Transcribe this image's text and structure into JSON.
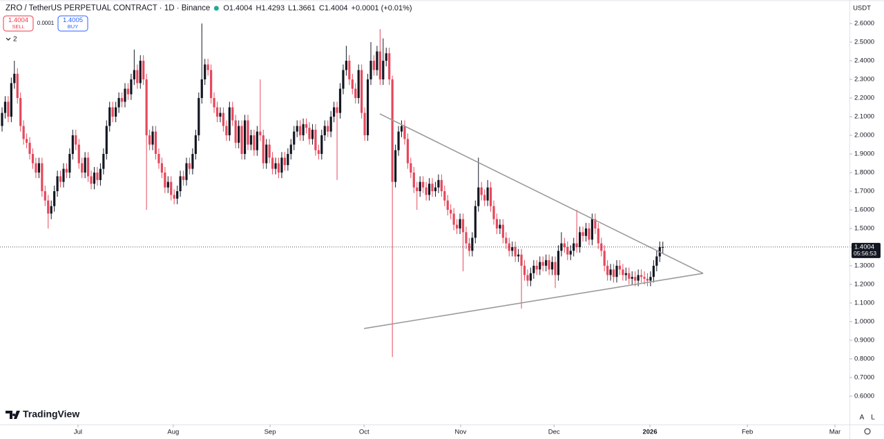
{
  "header": {
    "title": "ZRO / TetherUS PERPETUAL CONTRACT · 1D · Binance",
    "items": [
      {
        "label": "O",
        "value": "1.4004"
      },
      {
        "label": "H",
        "value": "1.4293"
      },
      {
        "label": "L",
        "value": "1.3661"
      },
      {
        "label": "C",
        "value": "1.4004"
      }
    ],
    "change": "+0.0001 (+0.01%)"
  },
  "trade": {
    "sell_price": "1.4004",
    "sell": "SELL",
    "spread": "0.0001",
    "buy_price": "1.4005",
    "buy": "BUY"
  },
  "indicators": "2",
  "currency": "USDT",
  "logo": "TradingView",
  "last_price": {
    "value": 1.4004,
    "label": "1.4004",
    "countdown": "05:56:53"
  },
  "scale_buttons": [
    "A",
    "L"
  ],
  "chart_data": {
    "type": "candlestick",
    "up_color": "#131722",
    "down_color": "#e5485c",
    "trend_color": "#9a9a9a",
    "ylim": [
      0.448,
      2.726
    ],
    "xlim": [
      -0.674,
      275.73
    ],
    "yticks": [
      {
        "value": 0.6,
        "label": "0.6000"
      },
      {
        "value": 0.7,
        "label": "0.7000"
      },
      {
        "value": 0.8,
        "label": "0.8000"
      },
      {
        "value": 0.9,
        "label": "0.9000"
      },
      {
        "value": 1.0,
        "label": "1.0000"
      },
      {
        "value": 1.1,
        "label": "1.1000"
      },
      {
        "value": 1.2,
        "label": "1.2000"
      },
      {
        "value": 1.3,
        "label": "1.3000"
      },
      {
        "value": 1.4,
        "label": "1.4000"
      },
      {
        "value": 1.5,
        "label": "1.5000"
      },
      {
        "value": 1.6,
        "label": "1.6000"
      },
      {
        "value": 1.7,
        "label": "1.7000"
      },
      {
        "value": 1.8,
        "label": "1.8000"
      },
      {
        "value": 1.9,
        "label": "1.9000"
      },
      {
        "value": 2.0,
        "label": "2.0000"
      },
      {
        "value": 2.1,
        "label": "2.1000"
      },
      {
        "value": 2.2,
        "label": "2.2000"
      },
      {
        "value": 2.3,
        "label": "2.3000"
      },
      {
        "value": 2.4,
        "label": "2.4000"
      },
      {
        "value": 2.5,
        "label": "2.5000"
      },
      {
        "value": 2.6,
        "label": "2.6000"
      }
    ],
    "xticks": [
      {
        "value": 24.7,
        "label": "Jul"
      },
      {
        "value": 55.7,
        "label": "Aug"
      },
      {
        "value": 87.2,
        "label": "Sep"
      },
      {
        "value": 117.8,
        "label": "Oct"
      },
      {
        "value": 149.2,
        "label": "Nov"
      },
      {
        "value": 179.6,
        "label": "Dec"
      },
      {
        "value": 210.8,
        "label": "2026",
        "bold": true
      },
      {
        "value": 242.5,
        "label": "Feb"
      },
      {
        "value": 271,
        "label": "Mar"
      }
    ],
    "trendlines": [
      [
        [
          122.9,
          2.115
        ],
        [
          228.1,
          1.259
        ]
      ],
      [
        [
          117.8,
          0.963
        ],
        [
          228.1,
          1.259
        ]
      ]
    ],
    "candles": [
      [
        2.05,
        2.15,
        2.02,
        2.12
      ],
      [
        2.12,
        2.21,
        2.09,
        2.18
      ],
      [
        2.18,
        2.21,
        2.07,
        2.1
      ],
      [
        2.1,
        2.31,
        2.07,
        2.28
      ],
      [
        2.28,
        2.4,
        2.25,
        2.33
      ],
      [
        2.33,
        2.36,
        2.17,
        2.2
      ],
      [
        2.2,
        2.23,
        2.02,
        2.05
      ],
      [
        2.05,
        2.08,
        1.95,
        1.98
      ],
      [
        1.98,
        2.01,
        1.93,
        1.96
      ],
      [
        1.96,
        1.99,
        1.87,
        1.9
      ],
      [
        1.9,
        1.93,
        1.82,
        1.85
      ],
      [
        1.85,
        1.88,
        1.77,
        1.8
      ],
      [
        1.8,
        1.88,
        1.77,
        1.85
      ],
      [
        1.85,
        1.88,
        1.67,
        1.7
      ],
      [
        1.7,
        1.73,
        1.62,
        1.65
      ],
      [
        1.65,
        1.68,
        1.5,
        1.58
      ],
      [
        1.58,
        1.65,
        1.55,
        1.62
      ],
      [
        1.62,
        1.73,
        1.59,
        1.7
      ],
      [
        1.7,
        1.81,
        1.67,
        1.78
      ],
      [
        1.78,
        1.81,
        1.72,
        1.75
      ],
      [
        1.75,
        1.85,
        1.72,
        1.82
      ],
      [
        1.82,
        1.85,
        1.77,
        1.8
      ],
      [
        1.8,
        1.93,
        1.77,
        1.9
      ],
      [
        1.9,
        2.03,
        1.87,
        2.0
      ],
      [
        2.0,
        2.03,
        1.92,
        1.95
      ],
      [
        1.95,
        1.98,
        1.82,
        1.85
      ],
      [
        1.85,
        1.88,
        1.77,
        1.8
      ],
      [
        1.8,
        1.91,
        1.77,
        1.88
      ],
      [
        1.88,
        1.91,
        1.75,
        1.78
      ],
      [
        1.78,
        1.81,
        1.71,
        1.74
      ],
      [
        1.74,
        1.83,
        1.71,
        1.8
      ],
      [
        1.8,
        1.83,
        1.73,
        1.76
      ],
      [
        1.76,
        1.85,
        1.73,
        1.82
      ],
      [
        1.82,
        1.93,
        1.79,
        1.9
      ],
      [
        1.9,
        2.08,
        1.87,
        2.05
      ],
      [
        2.05,
        2.18,
        2.02,
        2.15
      ],
      [
        2.15,
        2.18,
        2.07,
        2.1
      ],
      [
        2.1,
        2.18,
        2.07,
        2.15
      ],
      [
        2.15,
        2.23,
        2.12,
        2.2
      ],
      [
        2.2,
        2.23,
        2.15,
        2.18
      ],
      [
        2.18,
        2.28,
        2.15,
        2.25
      ],
      [
        2.25,
        2.28,
        2.19,
        2.22
      ],
      [
        2.22,
        2.33,
        2.19,
        2.3
      ],
      [
        2.3,
        2.46,
        2.27,
        2.35
      ],
      [
        2.35,
        2.38,
        2.25,
        2.28
      ],
      [
        2.28,
        2.43,
        2.25,
        2.4
      ],
      [
        2.4,
        2.43,
        2.27,
        2.3
      ],
      [
        2.3,
        2.33,
        1.6,
        2.0
      ],
      [
        2.0,
        2.03,
        1.92,
        1.95
      ],
      [
        1.95,
        2.05,
        1.92,
        2.02
      ],
      [
        2.02,
        2.05,
        1.87,
        1.9
      ],
      [
        1.9,
        1.93,
        1.82,
        1.85
      ],
      [
        1.85,
        1.88,
        1.77,
        1.8
      ],
      [
        1.8,
        1.83,
        1.69,
        1.72
      ],
      [
        1.72,
        1.78,
        1.69,
        1.75
      ],
      [
        1.75,
        1.78,
        1.65,
        1.68
      ],
      [
        1.68,
        1.71,
        1.63,
        1.66
      ],
      [
        1.66,
        1.73,
        1.63,
        1.7
      ],
      [
        1.7,
        1.81,
        1.67,
        1.78
      ],
      [
        1.78,
        1.81,
        1.73,
        1.76
      ],
      [
        1.76,
        1.88,
        1.73,
        1.85
      ],
      [
        1.85,
        1.88,
        1.79,
        1.82
      ],
      [
        1.82,
        1.93,
        1.79,
        1.9
      ],
      [
        1.9,
        2.03,
        1.87,
        2.0
      ],
      [
        2.0,
        2.23,
        1.97,
        2.2
      ],
      [
        2.2,
        2.6,
        2.17,
        2.3
      ],
      [
        2.3,
        2.41,
        2.27,
        2.38
      ],
      [
        2.38,
        2.41,
        2.32,
        2.35
      ],
      [
        2.35,
        2.38,
        2.17,
        2.2
      ],
      [
        2.2,
        2.23,
        2.12,
        2.15
      ],
      [
        2.15,
        2.18,
        2.07,
        2.1
      ],
      [
        2.1,
        2.15,
        2.07,
        2.12
      ],
      [
        2.12,
        2.15,
        2.02,
        2.05
      ],
      [
        2.05,
        2.08,
        1.97,
        2.0
      ],
      [
        2.0,
        2.18,
        1.97,
        2.15
      ],
      [
        2.15,
        2.18,
        2.05,
        2.08
      ],
      [
        2.08,
        2.11,
        1.93,
        1.96
      ],
      [
        1.96,
        2.08,
        1.93,
        2.05
      ],
      [
        2.05,
        2.08,
        1.87,
        1.9
      ],
      [
        1.9,
        2.11,
        1.87,
        2.08
      ],
      [
        2.08,
        2.11,
        1.92,
        1.95
      ],
      [
        1.95,
        2.03,
        1.92,
        2.0
      ],
      [
        2.0,
        2.03,
        1.89,
        1.92
      ],
      [
        1.92,
        2.05,
        1.89,
        2.02
      ],
      [
        2.02,
        2.3,
        1.97,
        2.0
      ],
      [
        2.0,
        2.03,
        1.82,
        1.85
      ],
      [
        1.85,
        1.98,
        1.82,
        1.95
      ],
      [
        1.95,
        1.98,
        1.85,
        1.88
      ],
      [
        1.88,
        1.91,
        1.79,
        1.82
      ],
      [
        1.82,
        1.88,
        1.79,
        1.85
      ],
      [
        1.85,
        1.88,
        1.77,
        1.8
      ],
      [
        1.8,
        1.91,
        1.77,
        1.88
      ],
      [
        1.88,
        1.91,
        1.81,
        1.84
      ],
      [
        1.84,
        1.93,
        1.81,
        1.9
      ],
      [
        1.9,
        1.98,
        1.87,
        1.95
      ],
      [
        1.95,
        2.05,
        1.92,
        2.02
      ],
      [
        2.02,
        2.08,
        1.99,
        2.05
      ],
      [
        2.05,
        2.08,
        1.97,
        2.0
      ],
      [
        2.0,
        2.09,
        1.97,
        2.06
      ],
      [
        2.06,
        2.09,
        2.01,
        2.04
      ],
      [
        2.04,
        2.07,
        1.95,
        1.98
      ],
      [
        1.98,
        2.06,
        1.95,
        2.03
      ],
      [
        2.03,
        2.06,
        1.89,
        1.92
      ],
      [
        1.92,
        1.95,
        1.87,
        1.9
      ],
      [
        1.9,
        2.03,
        1.87,
        2.0
      ],
      [
        2.0,
        2.08,
        1.97,
        2.05
      ],
      [
        2.05,
        2.08,
        1.99,
        2.02
      ],
      [
        2.02,
        2.13,
        1.99,
        2.1
      ],
      [
        2.1,
        2.18,
        2.07,
        2.15
      ],
      [
        2.15,
        2.18,
        1.76,
        2.12
      ],
      [
        2.12,
        2.28,
        2.09,
        2.25
      ],
      [
        2.25,
        2.38,
        2.22,
        2.35
      ],
      [
        2.35,
        2.48,
        2.32,
        2.4
      ],
      [
        2.4,
        2.43,
        2.27,
        2.3
      ],
      [
        2.3,
        2.33,
        2.22,
        2.25
      ],
      [
        2.25,
        2.28,
        2.17,
        2.2
      ],
      [
        2.2,
        2.38,
        2.17,
        2.35
      ],
      [
        2.35,
        2.38,
        2.09,
        2.12
      ],
      [
        2.12,
        2.15,
        1.97,
        2.0
      ],
      [
        2.0,
        2.33,
        1.97,
        2.3
      ],
      [
        2.3,
        2.5,
        2.27,
        2.4
      ],
      [
        2.4,
        2.43,
        2.32,
        2.35
      ],
      [
        2.35,
        2.48,
        2.32,
        2.45
      ],
      [
        2.45,
        2.57,
        2.27,
        2.3
      ],
      [
        2.3,
        2.52,
        2.27,
        2.4
      ],
      [
        2.4,
        2.47,
        2.37,
        2.44
      ],
      [
        2.44,
        2.47,
        2.27,
        2.3
      ],
      [
        2.3,
        2.32,
        0.81,
        1.75
      ],
      [
        1.75,
        1.95,
        1.72,
        1.92
      ],
      [
        1.92,
        2.05,
        1.89,
        2.02
      ],
      [
        2.02,
        2.08,
        1.99,
        2.05
      ],
      [
        2.05,
        2.08,
        1.95,
        1.98
      ],
      [
        1.98,
        2.01,
        1.82,
        1.85
      ],
      [
        1.85,
        1.88,
        1.77,
        1.8
      ],
      [
        1.8,
        1.83,
        1.69,
        1.72
      ],
      [
        1.72,
        1.75,
        1.6,
        1.7
      ],
      [
        1.7,
        1.78,
        1.67,
        1.75
      ],
      [
        1.75,
        1.78,
        1.69,
        1.72
      ],
      [
        1.72,
        1.75,
        1.65,
        1.68
      ],
      [
        1.68,
        1.77,
        1.65,
        1.74
      ],
      [
        1.74,
        1.77,
        1.67,
        1.7
      ],
      [
        1.7,
        1.75,
        1.67,
        1.72
      ],
      [
        1.72,
        1.79,
        1.69,
        1.76
      ],
      [
        1.76,
        1.79,
        1.67,
        1.7
      ],
      [
        1.7,
        1.73,
        1.62,
        1.65
      ],
      [
        1.65,
        1.68,
        1.57,
        1.6
      ],
      [
        1.6,
        1.63,
        1.55,
        1.58
      ],
      [
        1.58,
        1.61,
        1.49,
        1.52
      ],
      [
        1.52,
        1.55,
        1.47,
        1.5
      ],
      [
        1.5,
        1.58,
        1.47,
        1.55
      ],
      [
        1.55,
        1.58,
        1.27,
        1.48
      ],
      [
        1.48,
        1.51,
        1.39,
        1.42
      ],
      [
        1.42,
        1.45,
        1.35,
        1.38
      ],
      [
        1.38,
        1.48,
        1.35,
        1.45
      ],
      [
        1.45,
        1.65,
        1.42,
        1.62
      ],
      [
        1.62,
        1.88,
        1.59,
        1.72
      ],
      [
        1.72,
        1.75,
        1.65,
        1.68
      ],
      [
        1.68,
        1.71,
        1.62,
        1.65
      ],
      [
        1.65,
        1.76,
        1.62,
        1.72
      ],
      [
        1.72,
        1.75,
        1.59,
        1.62
      ],
      [
        1.62,
        1.65,
        1.52,
        1.55
      ],
      [
        1.55,
        1.58,
        1.47,
        1.5
      ],
      [
        1.5,
        1.55,
        1.47,
        1.52
      ],
      [
        1.52,
        1.55,
        1.42,
        1.45
      ],
      [
        1.45,
        1.48,
        1.39,
        1.42
      ],
      [
        1.42,
        1.45,
        1.35,
        1.38
      ],
      [
        1.38,
        1.43,
        1.35,
        1.4
      ],
      [
        1.4,
        1.43,
        1.32,
        1.35
      ],
      [
        1.35,
        1.39,
        1.32,
        1.36
      ],
      [
        1.36,
        1.39,
        1.07,
        1.3
      ],
      [
        1.3,
        1.33,
        1.22,
        1.25
      ],
      [
        1.25,
        1.28,
        1.19,
        1.22
      ],
      [
        1.22,
        1.29,
        1.19,
        1.26
      ],
      [
        1.26,
        1.33,
        1.23,
        1.3
      ],
      [
        1.3,
        1.33,
        1.25,
        1.28
      ],
      [
        1.28,
        1.35,
        1.25,
        1.32
      ],
      [
        1.32,
        1.35,
        1.27,
        1.3
      ],
      [
        1.3,
        1.36,
        1.27,
        1.33
      ],
      [
        1.33,
        1.36,
        1.25,
        1.28
      ],
      [
        1.28,
        1.35,
        1.25,
        1.32
      ],
      [
        1.32,
        1.35,
        1.18,
        1.25
      ],
      [
        1.25,
        1.41,
        1.22,
        1.38
      ],
      [
        1.38,
        1.48,
        1.35,
        1.42
      ],
      [
        1.42,
        1.45,
        1.37,
        1.4
      ],
      [
        1.4,
        1.43,
        1.33,
        1.36
      ],
      [
        1.36,
        1.41,
        1.33,
        1.38
      ],
      [
        1.38,
        1.45,
        1.35,
        1.42
      ],
      [
        1.42,
        1.6,
        1.37,
        1.4
      ],
      [
        1.4,
        1.51,
        1.37,
        1.48
      ],
      [
        1.48,
        1.51,
        1.43,
        1.46
      ],
      [
        1.46,
        1.53,
        1.43,
        1.5
      ],
      [
        1.5,
        1.53,
        1.41,
        1.44
      ],
      [
        1.44,
        1.58,
        1.41,
        1.55
      ],
      [
        1.55,
        1.58,
        1.47,
        1.5
      ],
      [
        1.5,
        1.53,
        1.39,
        1.42
      ],
      [
        1.42,
        1.45,
        1.35,
        1.38
      ],
      [
        1.38,
        1.41,
        1.27,
        1.3
      ],
      [
        1.3,
        1.33,
        1.22,
        1.25
      ],
      [
        1.25,
        1.31,
        1.22,
        1.28
      ],
      [
        1.28,
        1.31,
        1.21,
        1.24
      ],
      [
        1.24,
        1.33,
        1.21,
        1.3
      ],
      [
        1.3,
        1.33,
        1.25,
        1.28
      ],
      [
        1.28,
        1.31,
        1.22,
        1.25
      ],
      [
        1.25,
        1.29,
        1.22,
        1.26
      ],
      [
        1.26,
        1.29,
        1.2,
        1.23
      ],
      [
        1.23,
        1.27,
        1.2,
        1.24
      ],
      [
        1.24,
        1.27,
        1.19,
        1.22
      ],
      [
        1.22,
        1.28,
        1.19,
        1.25
      ],
      [
        1.25,
        1.28,
        1.21,
        1.24
      ],
      [
        1.24,
        1.27,
        1.2,
        1.23
      ],
      [
        1.23,
        1.26,
        1.19,
        1.22
      ],
      [
        1.22,
        1.27,
        1.19,
        1.24
      ],
      [
        1.24,
        1.33,
        1.21,
        1.3
      ],
      [
        1.3,
        1.38,
        1.27,
        1.35
      ],
      [
        1.35,
        1.43,
        1.32,
        1.4
      ],
      [
        1.4004,
        1.4293,
        1.3661,
        1.4004
      ]
    ]
  }
}
